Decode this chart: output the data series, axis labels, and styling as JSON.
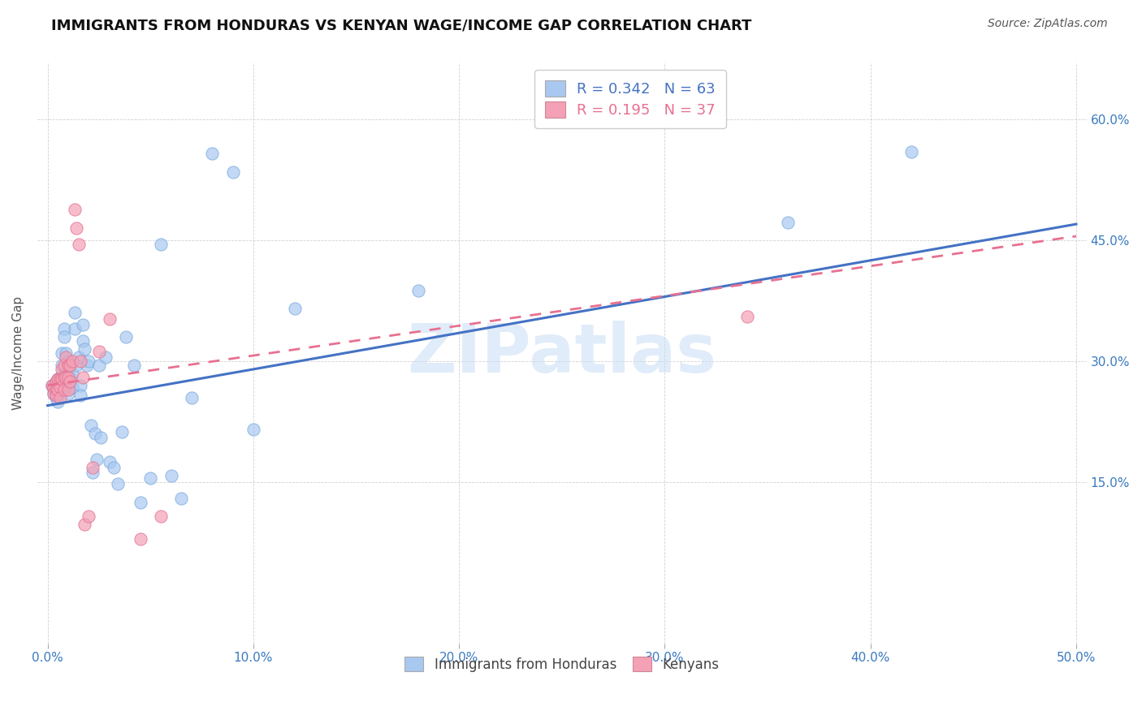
{
  "title": "IMMIGRANTS FROM HONDURAS VS KENYAN WAGE/INCOME GAP CORRELATION CHART",
  "source": "Source: ZipAtlas.com",
  "ylabel": "Wage/Income Gap",
  "yticks": [
    "15.0%",
    "30.0%",
    "45.0%",
    "60.0%"
  ],
  "ytick_vals": [
    0.15,
    0.3,
    0.45,
    0.6
  ],
  "xtick_vals": [
    0.0,
    0.1,
    0.2,
    0.3,
    0.4,
    0.5
  ],
  "xlim": [
    -0.005,
    0.505
  ],
  "ylim": [
    -0.05,
    0.67
  ],
  "R_blue": 0.342,
  "N_blue": 63,
  "R_pink": 0.195,
  "N_pink": 37,
  "color_blue": "#a8c8f0",
  "color_pink": "#f4a0b5",
  "line_blue": "#4472c4",
  "line_pink": "#e87090",
  "legend_label_blue": "Immigrants from Honduras",
  "legend_label_pink": "Kenyans",
  "watermark": "ZIPatlas",
  "blue_line_x0": 0.0,
  "blue_line_y0": 0.245,
  "blue_line_x1": 0.5,
  "blue_line_y1": 0.47,
  "pink_line_x0": 0.0,
  "pink_line_y0": 0.27,
  "pink_line_x1": 0.5,
  "pink_line_y1": 0.455,
  "blue_scatter_x": [
    0.002,
    0.003,
    0.003,
    0.004,
    0.004,
    0.004,
    0.005,
    0.005,
    0.005,
    0.005,
    0.006,
    0.006,
    0.007,
    0.007,
    0.007,
    0.008,
    0.008,
    0.008,
    0.009,
    0.009,
    0.01,
    0.01,
    0.01,
    0.011,
    0.012,
    0.012,
    0.013,
    0.013,
    0.014,
    0.015,
    0.016,
    0.016,
    0.017,
    0.017,
    0.018,
    0.019,
    0.02,
    0.021,
    0.022,
    0.023,
    0.024,
    0.025,
    0.026,
    0.028,
    0.03,
    0.032,
    0.034,
    0.036,
    0.038,
    0.042,
    0.045,
    0.05,
    0.055,
    0.06,
    0.065,
    0.07,
    0.08,
    0.09,
    0.1,
    0.12,
    0.18,
    0.36,
    0.42
  ],
  "blue_scatter_y": [
    0.27,
    0.265,
    0.26,
    0.27,
    0.262,
    0.255,
    0.278,
    0.268,
    0.258,
    0.25,
    0.28,
    0.265,
    0.31,
    0.295,
    0.265,
    0.34,
    0.33,
    0.268,
    0.31,
    0.285,
    0.3,
    0.275,
    0.26,
    0.28,
    0.285,
    0.268,
    0.36,
    0.34,
    0.295,
    0.305,
    0.27,
    0.258,
    0.345,
    0.325,
    0.315,
    0.295,
    0.3,
    0.22,
    0.162,
    0.21,
    0.178,
    0.295,
    0.205,
    0.305,
    0.175,
    0.168,
    0.148,
    0.212,
    0.33,
    0.295,
    0.125,
    0.155,
    0.445,
    0.158,
    0.13,
    0.255,
    0.558,
    0.535,
    0.215,
    0.365,
    0.388,
    0.472,
    0.56
  ],
  "pink_scatter_x": [
    0.002,
    0.003,
    0.003,
    0.004,
    0.004,
    0.004,
    0.005,
    0.005,
    0.006,
    0.006,
    0.006,
    0.007,
    0.007,
    0.008,
    0.008,
    0.008,
    0.009,
    0.009,
    0.01,
    0.01,
    0.01,
    0.011,
    0.011,
    0.012,
    0.013,
    0.014,
    0.015,
    0.016,
    0.017,
    0.018,
    0.02,
    0.022,
    0.025,
    0.03,
    0.045,
    0.055,
    0.34
  ],
  "pink_scatter_y": [
    0.27,
    0.268,
    0.26,
    0.275,
    0.265,
    0.258,
    0.278,
    0.265,
    0.278,
    0.268,
    0.255,
    0.29,
    0.278,
    0.295,
    0.28,
    0.265,
    0.305,
    0.28,
    0.295,
    0.28,
    0.265,
    0.295,
    0.275,
    0.3,
    0.488,
    0.465,
    0.445,
    0.3,
    0.28,
    0.098,
    0.108,
    0.168,
    0.312,
    0.352,
    0.08,
    0.108,
    0.355
  ]
}
